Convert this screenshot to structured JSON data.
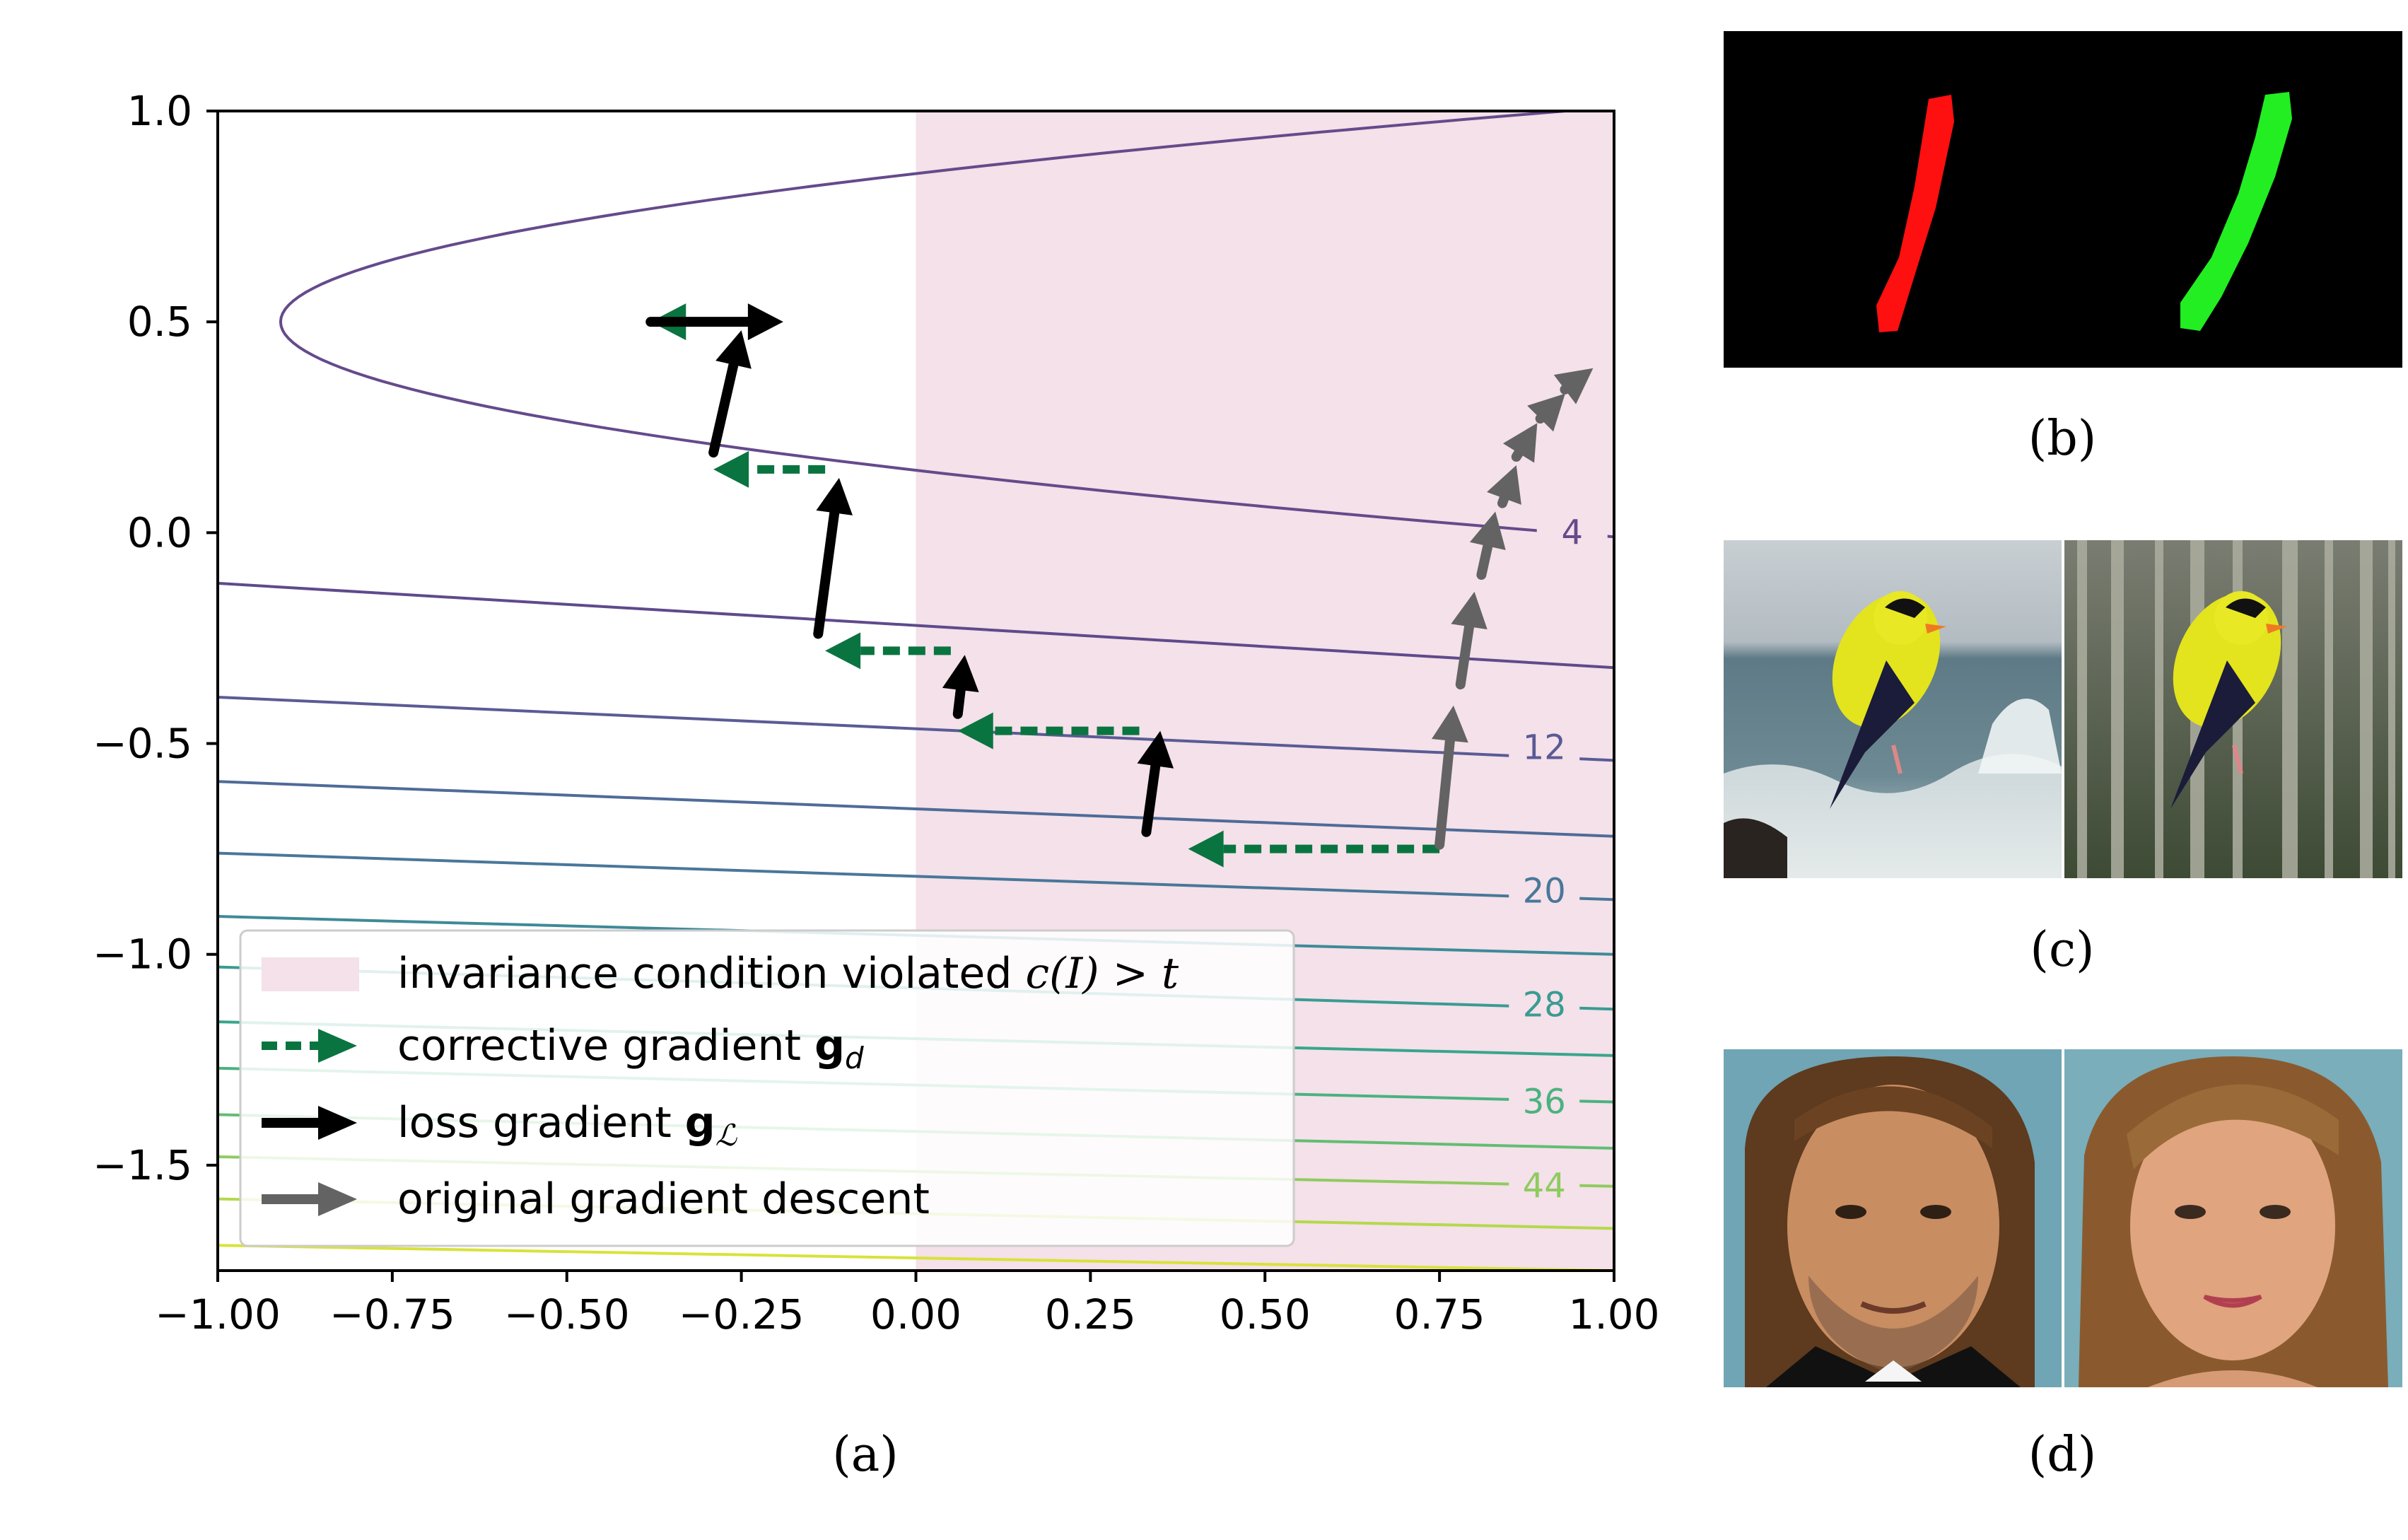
{
  "chart_data": {
    "type": "line",
    "xlim": [
      -1.0,
      1.0
    ],
    "ylim": [
      -1.75,
      1.0
    ],
    "xticks": [
      -1.0,
      -0.75,
      -0.5,
      -0.25,
      0.0,
      0.25,
      0.5,
      0.75,
      1.0
    ],
    "xtick_labels": [
      "−1.00",
      "−0.75",
      "−0.50",
      "−0.25",
      "0.00",
      "0.25",
      "0.50",
      "0.75",
      "1.00"
    ],
    "yticks": [
      1.0,
      0.5,
      0.0,
      -0.5,
      -1.0,
      -1.5
    ],
    "ytick_labels": [
      "1.0",
      "0.5",
      "0.0",
      "−0.5",
      "−1.0",
      "−1.5"
    ],
    "violated_region": {
      "x_start": 0.0,
      "x_end": 1.0,
      "color": "#f4e1e9"
    },
    "contours": [
      {
        "level": 4,
        "vertex_x": -0.91,
        "vertex_y": 0.5,
        "upper_end": [
          0.93,
          1.0
        ],
        "lower_end": [
          1.0,
          -0.01
        ],
        "color": "#654a8c",
        "label": "4",
        "label_at": [
          0.94,
          0.0
        ]
      },
      {
        "level": 8,
        "y_left": -0.12,
        "y_right": -0.32,
        "color": "#5f4a8c"
      },
      {
        "level": 12,
        "y_left": -0.39,
        "y_right": -0.54,
        "color": "#5a5b95",
        "label": "12",
        "label_at": [
          0.9,
          -0.51
        ]
      },
      {
        "level": 16,
        "y_left": -0.59,
        "y_right": -0.72,
        "color": "#4f6b98",
        "label": null
      },
      {
        "level": 20,
        "y_left": -0.76,
        "y_right": -0.87,
        "color": "#49779a",
        "label": "20",
        "label_at": [
          0.9,
          -0.85
        ]
      },
      {
        "level": 24,
        "y_left": -0.91,
        "y_right": -1.0,
        "color": "#3f8a97",
        "label": null
      },
      {
        "level": 28,
        "y_left": -1.03,
        "y_right": -1.13,
        "color": "#3a9b93",
        "label": "28",
        "label_at": [
          0.9,
          -1.12
        ]
      },
      {
        "level": 32,
        "y_left": -1.16,
        "y_right": -1.24,
        "color": "#38a58d",
        "label": null
      },
      {
        "level": 36,
        "y_left": -1.27,
        "y_right": -1.35,
        "color": "#4ab27f",
        "label": "36",
        "label_at": [
          0.9,
          -1.35
        ]
      },
      {
        "level": 40,
        "y_left": -1.38,
        "y_right": -1.46,
        "color": "#62bd74",
        "label": null
      },
      {
        "level": 44,
        "y_left": -1.48,
        "y_right": -1.55,
        "color": "#8fcb60",
        "label": "44",
        "label_at": [
          0.9,
          -1.55
        ]
      },
      {
        "level": 48,
        "y_left": -1.58,
        "y_right": -1.65,
        "color": "#b5d84c",
        "label": null
      },
      {
        "level": 52,
        "y_left": -1.69,
        "y_right": -1.75,
        "color": "#d8e23a",
        "label": null
      }
    ],
    "series": [
      {
        "name": "corrective gradient",
        "color": "#0a7440",
        "style": "dashed",
        "arrows": [
          [
            [
              0.75,
              -0.75
            ],
            [
              0.39,
              -0.75
            ]
          ],
          [
            [
              0.32,
              -0.47
            ],
            [
              0.06,
              -0.47
            ]
          ],
          [
            [
              0.05,
              -0.28
            ],
            [
              -0.13,
              -0.28
            ]
          ],
          [
            [
              -0.13,
              0.15
            ],
            [
              -0.29,
              0.15
            ]
          ],
          [
            [
              -0.31,
              0.5
            ],
            [
              -0.38,
              0.5
            ]
          ]
        ]
      },
      {
        "name": "loss gradient",
        "color": "#000000",
        "style": "solid",
        "arrows": [
          [
            [
              0.33,
              -0.71
            ],
            [
              0.35,
              -0.47
            ]
          ],
          [
            [
              0.06,
              -0.43
            ],
            [
              0.07,
              -0.29
            ]
          ],
          [
            [
              -0.14,
              -0.24
            ],
            [
              -0.11,
              0.13
            ]
          ],
          [
            [
              -0.29,
              0.19
            ],
            [
              -0.25,
              0.48
            ]
          ],
          [
            [
              -0.38,
              0.5
            ],
            [
              -0.19,
              0.5
            ]
          ]
        ]
      },
      {
        "name": "original gradient descent",
        "color": "#636363",
        "style": "solid",
        "arrows": [
          [
            [
              0.75,
              -0.74
            ],
            [
              0.77,
              -0.41
            ]
          ],
          [
            [
              0.78,
              -0.36
            ],
            [
              0.8,
              -0.14
            ]
          ],
          [
            [
              0.81,
              -0.1
            ],
            [
              0.83,
              0.05
            ]
          ],
          [
            [
              0.84,
              0.07
            ],
            [
              0.86,
              0.16
            ]
          ],
          [
            [
              0.86,
              0.18
            ],
            [
              0.89,
              0.26
            ]
          ],
          [
            [
              0.9,
              0.28
            ],
            [
              0.93,
              0.33
            ]
          ],
          [
            [
              0.93,
              0.34
            ],
            [
              0.97,
              0.39
            ]
          ]
        ]
      }
    ],
    "legend": {
      "position": "lower-left",
      "entries": [
        {
          "label": "invariance condition violated ",
          "math": "c(I) > t",
          "kind": "patch",
          "color": "#f4e1e9"
        },
        {
          "label": "corrective gradient ",
          "math": "g",
          "sub": "d",
          "kind": "dashed-arrow",
          "color": "#0a7440"
        },
        {
          "label": "loss gradient ",
          "math": "g",
          "sub": "ℒ",
          "kind": "arrow",
          "color": "#000000"
        },
        {
          "label": "original gradient descent",
          "kind": "arrow",
          "color": "#636363"
        }
      ]
    }
  },
  "captions": {
    "a": "(a)",
    "b": "(b)",
    "c": "(c)",
    "d": "(d)"
  },
  "panels": {
    "b": {
      "desc_icon": "digit-one-color-swap-icon",
      "left_color": "#ff1010",
      "right_color": "#22ee22"
    },
    "c": {
      "desc_icon": "bird-background-swap-icon"
    },
    "d": {
      "desc_icon": "face-gender-swap-icon"
    }
  }
}
